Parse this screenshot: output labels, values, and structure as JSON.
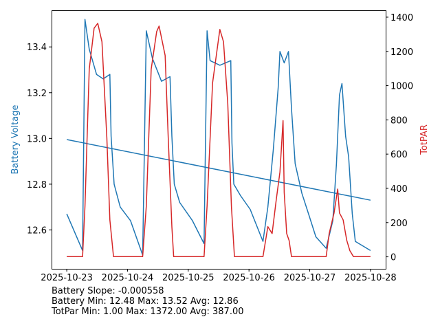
{
  "chart_data": {
    "type": "line",
    "xlabel": "",
    "ylabel_left": "Battery Voltage",
    "ylabel_right": "TotPAR",
    "x_ticks": [
      "2025-10-23",
      "2025-10-24",
      "2025-10-25",
      "2025-10-26",
      "2025-10-27",
      "2025-10-28"
    ],
    "x_range_days": [
      -0.25,
      5.25
    ],
    "y_left_ticks": [
      12.6,
      12.8,
      13.0,
      13.2,
      13.4
    ],
    "y_left_ylim": [
      12.43,
      13.56
    ],
    "y_right_ticks": [
      0,
      200,
      400,
      600,
      800,
      1000,
      1200,
      1400
    ],
    "y_right_ylim": [
      -70,
      1440
    ],
    "colors": {
      "battery": "#1f77b4",
      "par": "#d62728"
    },
    "series": [
      {
        "name": "Battery Voltage",
        "axis": "left",
        "color": "#1f77b4",
        "points": [
          [
            0,
            12.67
          ],
          [
            0.26,
            12.51
          ],
          [
            0.3,
            13.52
          ],
          [
            0.37,
            13.39
          ],
          [
            0.49,
            13.28
          ],
          [
            0.6,
            13.26
          ],
          [
            0.71,
            13.28
          ],
          [
            0.73,
            13.01
          ],
          [
            0.78,
            12.8
          ],
          [
            0.88,
            12.7
          ],
          [
            1.05,
            12.64
          ],
          [
            1.25,
            12.49
          ],
          [
            1.31,
            13.47
          ],
          [
            1.41,
            13.35
          ],
          [
            1.56,
            13.25
          ],
          [
            1.7,
            13.27
          ],
          [
            1.73,
            13.01
          ],
          [
            1.77,
            12.8
          ],
          [
            1.86,
            12.72
          ],
          [
            2.07,
            12.64
          ],
          [
            2.26,
            12.54
          ],
          [
            2.31,
            13.47
          ],
          [
            2.36,
            13.34
          ],
          [
            2.52,
            13.32
          ],
          [
            2.7,
            13.34
          ],
          [
            2.72,
            12.98
          ],
          [
            2.75,
            12.8
          ],
          [
            2.86,
            12.75
          ],
          [
            3.02,
            12.69
          ],
          [
            3.23,
            12.55
          ],
          [
            3.31,
            12.7
          ],
          [
            3.4,
            12.95
          ],
          [
            3.48,
            13.22
          ],
          [
            3.51,
            13.38
          ],
          [
            3.58,
            13.33
          ],
          [
            3.65,
            13.38
          ],
          [
            3.7,
            13.13
          ],
          [
            3.76,
            12.89
          ],
          [
            3.87,
            12.76
          ],
          [
            3.98,
            12.67
          ],
          [
            4.1,
            12.57
          ],
          [
            4.27,
            12.52
          ],
          [
            4.38,
            12.64
          ],
          [
            4.44,
            12.89
          ],
          [
            4.49,
            13.19
          ],
          [
            4.53,
            13.24
          ],
          [
            4.59,
            13.01
          ],
          [
            4.64,
            12.92
          ],
          [
            4.7,
            12.67
          ],
          [
            4.75,
            12.55
          ],
          [
            5.0,
            12.51
          ]
        ]
      },
      {
        "name": "Battery Trend",
        "axis": "left",
        "color": "#1f77b4",
        "points": [
          [
            0,
            12.995
          ],
          [
            5,
            12.73
          ]
        ]
      },
      {
        "name": "TotPAR",
        "axis": "right",
        "color": "#d62728",
        "points": [
          [
            0,
            1
          ],
          [
            0.26,
            1
          ],
          [
            0.3,
            296
          ],
          [
            0.37,
            1096
          ],
          [
            0.45,
            1336
          ],
          [
            0.51,
            1364
          ],
          [
            0.58,
            1256
          ],
          [
            0.66,
            696
          ],
          [
            0.71,
            216
          ],
          [
            0.77,
            1
          ],
          [
            1.25,
            1
          ],
          [
            1.31,
            296
          ],
          [
            1.39,
            1096
          ],
          [
            1.48,
            1316
          ],
          [
            1.52,
            1348
          ],
          [
            1.62,
            1176
          ],
          [
            1.67,
            696
          ],
          [
            1.73,
            176
          ],
          [
            1.76,
            1
          ],
          [
            2.26,
            1
          ],
          [
            2.31,
            296
          ],
          [
            2.4,
            1016
          ],
          [
            2.5,
            1276
          ],
          [
            2.52,
            1328
          ],
          [
            2.58,
            1256
          ],
          [
            2.65,
            896
          ],
          [
            2.71,
            296
          ],
          [
            2.76,
            1
          ],
          [
            3.23,
            1
          ],
          [
            3.31,
            176
          ],
          [
            3.38,
            136
          ],
          [
            3.45,
            336
          ],
          [
            3.51,
            496
          ],
          [
            3.56,
            796
          ],
          [
            3.58,
            376
          ],
          [
            3.62,
            136
          ],
          [
            3.66,
            96
          ],
          [
            3.7,
            1
          ],
          [
            4.27,
            1
          ],
          [
            4.32,
            136
          ],
          [
            4.4,
            256
          ],
          [
            4.46,
            396
          ],
          [
            4.49,
            256
          ],
          [
            4.55,
            216
          ],
          [
            4.61,
            96
          ],
          [
            4.66,
            36
          ],
          [
            4.72,
            1
          ],
          [
            5.0,
            1
          ]
        ]
      }
    ],
    "annotations": [
      "Battery Slope: -0.000558",
      "Battery Min: 12.48 Max: 13.52 Avg: 12.86",
      "TotPar Min: 1.00 Max: 1372.00 Avg: 387.00"
    ]
  }
}
